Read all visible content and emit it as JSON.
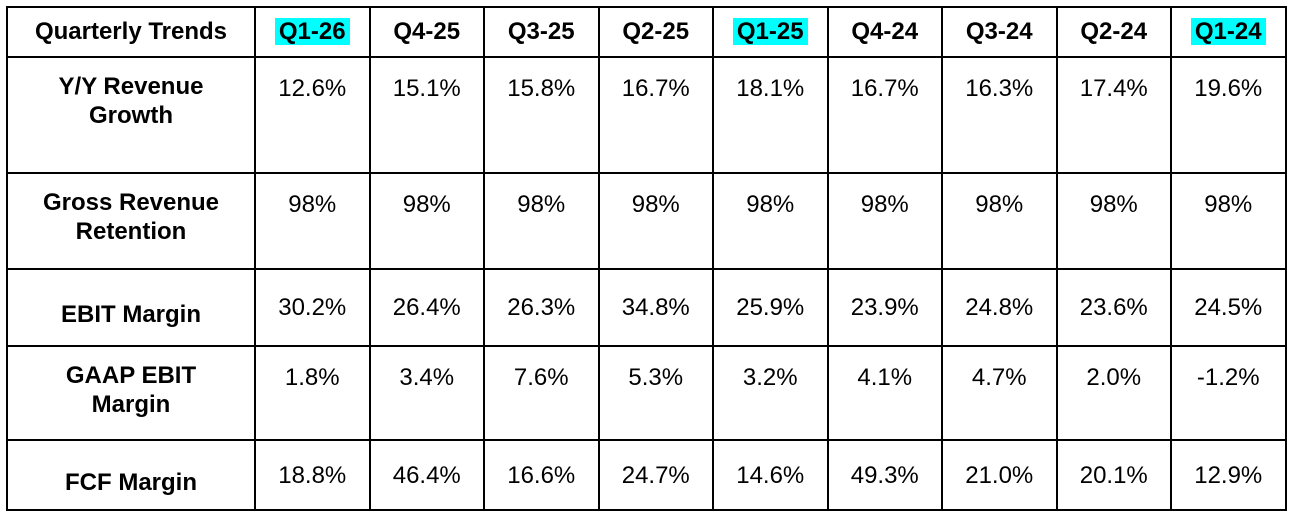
{
  "table": {
    "corner_label": "Quarterly Trends",
    "highlight_color": "#00ffff",
    "columns": [
      {
        "label": "Q1-26",
        "highlighted": true
      },
      {
        "label": "Q4-25",
        "highlighted": false
      },
      {
        "label": "Q3-25",
        "highlighted": false
      },
      {
        "label": "Q2-25",
        "highlighted": false
      },
      {
        "label": "Q1-25",
        "highlighted": true
      },
      {
        "label": "Q4-24",
        "highlighted": false
      },
      {
        "label": "Q3-24",
        "highlighted": false
      },
      {
        "label": "Q2-24",
        "highlighted": false
      },
      {
        "label": "Q1-24",
        "highlighted": true
      }
    ],
    "rows": [
      {
        "label_line1": "Y/Y Revenue",
        "label_line2": "Growth",
        "values": [
          "12.6%",
          "15.1%",
          "15.8%",
          "16.7%",
          "18.1%",
          "16.7%",
          "16.3%",
          "17.4%",
          "19.6%"
        ]
      },
      {
        "label_line1": "Gross Revenue",
        "label_line2": "Retention",
        "values": [
          "98%",
          "98%",
          "98%",
          "98%",
          "98%",
          "98%",
          "98%",
          "98%",
          "98%"
        ]
      },
      {
        "label_line1": "EBIT Margin",
        "label_line2": "",
        "values": [
          "30.2%",
          "26.4%",
          "26.3%",
          "34.8%",
          "25.9%",
          "23.9%",
          "24.8%",
          "23.6%",
          "24.5%"
        ]
      },
      {
        "label_line1": "GAAP EBIT",
        "label_line2": "Margin",
        "values": [
          "1.8%",
          "3.4%",
          "7.6%",
          "5.3%",
          "3.2%",
          "4.1%",
          "4.7%",
          "2.0%",
          "-1.2%"
        ]
      },
      {
        "label_line1": "FCF Margin",
        "label_line2": "",
        "values": [
          "18.8%",
          "46.4%",
          "16.6%",
          "24.7%",
          "14.6%",
          "49.3%",
          "21.0%",
          "20.1%",
          "12.9%"
        ]
      }
    ]
  }
}
